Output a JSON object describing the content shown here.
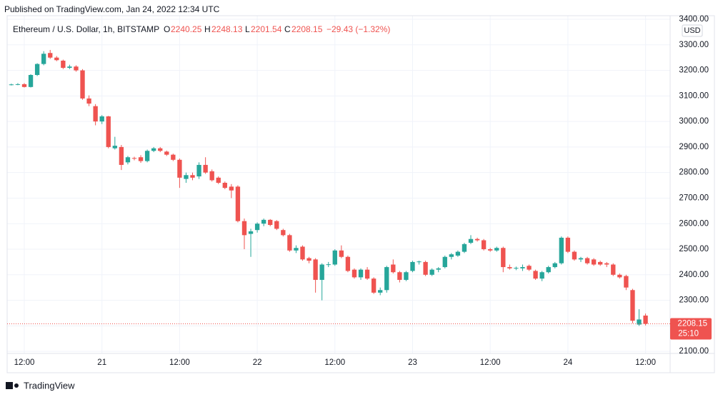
{
  "chart_data": {
    "type": "candlestick",
    "published": "Published on TradingView.com, Jan 24, 2022 12:34 UTC",
    "title": "Ethereum / U.S. Dollar, 1h, BITSTAMP",
    "legend": {
      "o_label": "O",
      "open": 2240.25,
      "h_label": "H",
      "high": 2248.13,
      "l_label": "L",
      "low": 2201.54,
      "c_label": "C",
      "close": 2208.15,
      "change": "−29.43 (−1.32%)"
    },
    "currency": "USD",
    "last_price": 2208.15,
    "countdown": "25:10",
    "brand": "TradingView",
    "up_color": "#26a69a",
    "down_color": "#ef5350",
    "grid": true,
    "x": [
      0,
      1,
      2,
      3,
      4,
      5,
      6,
      7,
      8,
      9,
      10,
      11,
      12,
      13,
      14,
      15,
      16,
      17,
      18,
      19,
      20,
      21,
      22,
      23,
      24,
      25,
      26,
      27,
      28,
      29,
      30,
      31,
      32,
      33,
      34,
      35,
      36,
      37,
      38,
      39,
      40,
      41,
      42,
      43,
      44,
      45,
      46,
      47,
      48,
      49,
      50,
      51,
      52,
      53,
      54,
      55,
      56,
      57,
      58,
      59,
      60,
      61,
      62,
      63,
      64,
      65,
      66,
      67,
      68,
      69,
      70,
      71,
      72,
      73,
      74,
      75,
      76,
      77,
      78,
      79,
      80,
      81,
      82,
      83,
      84,
      85,
      86,
      87,
      88,
      89,
      90,
      91,
      92,
      93,
      94,
      95,
      96,
      97,
      98
    ],
    "ohlc": [
      [
        3144,
        3148,
        3141,
        3145
      ],
      [
        3145,
        3150,
        3142,
        3146
      ],
      [
        3146,
        3150,
        3133,
        3135
      ],
      [
        3135,
        3185,
        3133,
        3182
      ],
      [
        3182,
        3228,
        3178,
        3225
      ],
      [
        3225,
        3275,
        3220,
        3265
      ],
      [
        3268,
        3280,
        3245,
        3250
      ],
      [
        3250,
        3256,
        3236,
        3240
      ],
      [
        3238,
        3242,
        3205,
        3210
      ],
      [
        3210,
        3222,
        3205,
        3215
      ],
      [
        3215,
        3220,
        3195,
        3200
      ],
      [
        3200,
        3205,
        3085,
        3090
      ],
      [
        3090,
        3102,
        3060,
        3070
      ],
      [
        3060,
        3068,
        2985,
        3000
      ],
      [
        3000,
        3025,
        2990,
        3020
      ],
      [
        3020,
        3022,
        2895,
        2900
      ],
      [
        2895,
        2940,
        2890,
        2905
      ],
      [
        2900,
        2908,
        2810,
        2830
      ],
      [
        2840,
        2865,
        2832,
        2860
      ],
      [
        2857,
        2862,
        2848,
        2855
      ],
      [
        2860,
        2868,
        2838,
        2845
      ],
      [
        2845,
        2890,
        2840,
        2885
      ],
      [
        2885,
        2900,
        2880,
        2895
      ],
      [
        2895,
        2900,
        2880,
        2885
      ],
      [
        2882,
        2886,
        2865,
        2870
      ],
      [
        2870,
        2874,
        2845,
        2850
      ],
      [
        2850,
        2855,
        2740,
        2780
      ],
      [
        2775,
        2800,
        2760,
        2790
      ],
      [
        2790,
        2800,
        2770,
        2780
      ],
      [
        2785,
        2840,
        2775,
        2830
      ],
      [
        2830,
        2860,
        2795,
        2800
      ],
      [
        2805,
        2812,
        2765,
        2770
      ],
      [
        2780,
        2785,
        2755,
        2760
      ],
      [
        2760,
        2765,
        2735,
        2740
      ],
      [
        2745,
        2755,
        2700,
        2730
      ],
      [
        2745,
        2750,
        2605,
        2610
      ],
      [
        2610,
        2620,
        2500,
        2555
      ],
      [
        2560,
        2580,
        2470,
        2570
      ],
      [
        2575,
        2605,
        2565,
        2600
      ],
      [
        2600,
        2620,
        2590,
        2615
      ],
      [
        2615,
        2618,
        2590,
        2595
      ],
      [
        2610,
        2614,
        2575,
        2580
      ],
      [
        2575,
        2580,
        2550,
        2555
      ],
      [
        2555,
        2560,
        2490,
        2495
      ],
      [
        2495,
        2515,
        2485,
        2505
      ],
      [
        2510,
        2515,
        2455,
        2460
      ],
      [
        2465,
        2470,
        2445,
        2455
      ],
      [
        2460,
        2465,
        2330,
        2380
      ],
      [
        2380,
        2445,
        2300,
        2440
      ],
      [
        2440,
        2450,
        2430,
        2441
      ],
      [
        2440,
        2500,
        2435,
        2495
      ],
      [
        2495,
        2515,
        2465,
        2470
      ],
      [
        2470,
        2475,
        2410,
        2415
      ],
      [
        2420,
        2425,
        2385,
        2390
      ],
      [
        2390,
        2425,
        2380,
        2420
      ],
      [
        2420,
        2430,
        2380,
        2385
      ],
      [
        2385,
        2390,
        2325,
        2330
      ],
      [
        2330,
        2350,
        2320,
        2340
      ],
      [
        2340,
        2435,
        2330,
        2430
      ],
      [
        2440,
        2460,
        2405,
        2410
      ],
      [
        2410,
        2415,
        2370,
        2380
      ],
      [
        2380,
        2415,
        2375,
        2410
      ],
      [
        2415,
        2455,
        2410,
        2450
      ],
      [
        2450,
        2455,
        2440,
        2452
      ],
      [
        2450,
        2455,
        2395,
        2400
      ],
      [
        2400,
        2425,
        2395,
        2420
      ],
      [
        2420,
        2430,
        2410,
        2425
      ],
      [
        2430,
        2475,
        2425,
        2470
      ],
      [
        2470,
        2485,
        2460,
        2480
      ],
      [
        2475,
        2495,
        2470,
        2490
      ],
      [
        2490,
        2525,
        2485,
        2520
      ],
      [
        2525,
        2555,
        2520,
        2540
      ],
      [
        2540,
        2545,
        2530,
        2535
      ],
      [
        2535,
        2540,
        2495,
        2500
      ],
      [
        2500,
        2505,
        2490,
        2495
      ],
      [
        2495,
        2510,
        2490,
        2505
      ],
      [
        2505,
        2510,
        2410,
        2430
      ],
      [
        2430,
        2440,
        2420,
        2425
      ],
      [
        2425,
        2432,
        2418,
        2427
      ],
      [
        2425,
        2440,
        2415,
        2430
      ],
      [
        2435,
        2440,
        2415,
        2420
      ],
      [
        2415,
        2420,
        2380,
        2385
      ],
      [
        2385,
        2415,
        2375,
        2410
      ],
      [
        2410,
        2435,
        2405,
        2430
      ],
      [
        2430,
        2450,
        2425,
        2445
      ],
      [
        2445,
        2550,
        2440,
        2545
      ],
      [
        2545,
        2550,
        2485,
        2490
      ],
      [
        2490,
        2495,
        2455,
        2460
      ],
      [
        2460,
        2470,
        2450,
        2465
      ],
      [
        2465,
        2470,
        2440,
        2445
      ],
      [
        2460,
        2465,
        2435,
        2440
      ],
      [
        2450,
        2455,
        2435,
        2440
      ],
      [
        2445,
        2450,
        2430,
        2440
      ],
      [
        2440,
        2445,
        2395,
        2400
      ],
      [
        2400,
        2405,
        2385,
        2390
      ],
      [
        2395,
        2400,
        2340,
        2350
      ],
      [
        2340,
        2345,
        2210,
        2220
      ],
      [
        2205,
        2265,
        2200,
        2225
      ],
      [
        2240.25,
        2248.13,
        2201.54,
        2208.15
      ]
    ],
    "xlim": [
      -0.65,
      101.8
    ],
    "xticks": [
      {
        "value": 2,
        "label": "12:00"
      },
      {
        "value": 14,
        "label": "21"
      },
      {
        "value": 26,
        "label": "12:00"
      },
      {
        "value": 38,
        "label": "22"
      },
      {
        "value": 50,
        "label": "12:00"
      },
      {
        "value": 62,
        "label": "23"
      },
      {
        "value": 74,
        "label": "12:00"
      },
      {
        "value": 86,
        "label": "24"
      },
      {
        "value": 98,
        "label": "12:00"
      }
    ],
    "ylim": [
      2092,
      3414
    ],
    "yticks": [
      {
        "value": 2100,
        "label": "2100.00"
      },
      {
        "value": 2200,
        "label": "2200.00"
      },
      {
        "value": 2300,
        "label": "2300.00"
      },
      {
        "value": 2400,
        "label": "2400.00"
      },
      {
        "value": 2500,
        "label": "2500.00"
      },
      {
        "value": 2600,
        "label": "2600.00"
      },
      {
        "value": 2700,
        "label": "2700.00"
      },
      {
        "value": 2800,
        "label": "2800.00"
      },
      {
        "value": 2900,
        "label": "2900.00"
      },
      {
        "value": 3000,
        "label": "3000.00"
      },
      {
        "value": 3100,
        "label": "3100.00"
      },
      {
        "value": 3200,
        "label": "3200.00"
      },
      {
        "value": 3300,
        "label": "3300.00"
      },
      {
        "value": 3400,
        "label": "3400.00"
      }
    ]
  }
}
